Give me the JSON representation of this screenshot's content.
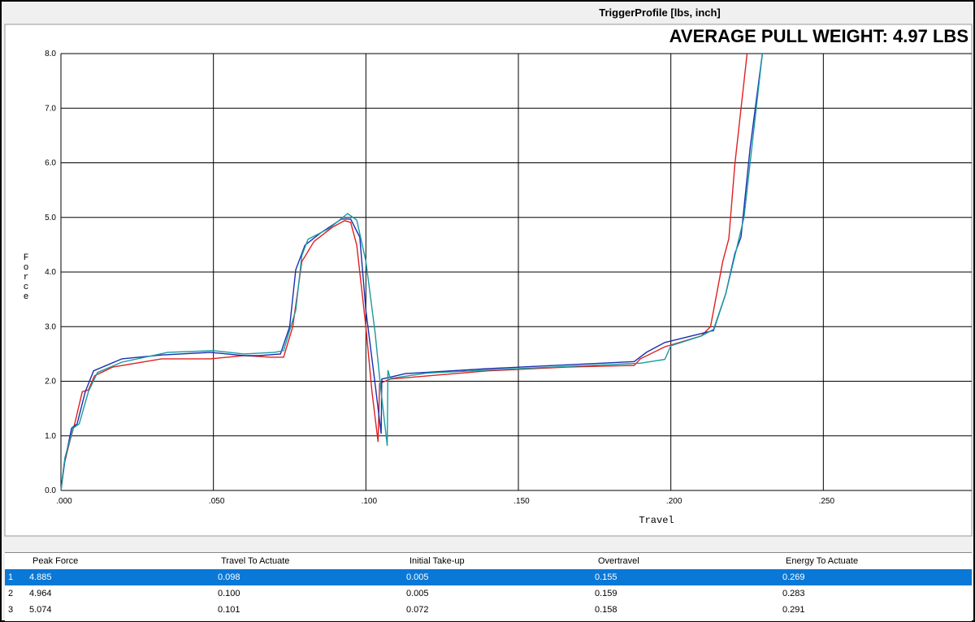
{
  "window_title": "TriggerProfile [lbs, inch]",
  "banner": "AVERAGE PULL WEIGHT: 4.97 LBS",
  "chart_data": {
    "type": "line",
    "xlabel": "Travel",
    "ylabel": "Force",
    "grid": true,
    "xlim": [
      0,
      0.3
    ],
    "ylim": [
      0,
      8
    ],
    "xticks": [
      {
        "value": 0,
        "label": ".000"
      },
      {
        "value": 0.05,
        "label": ".050"
      },
      {
        "value": 0.1,
        "label": ".100"
      },
      {
        "value": 0.15,
        "label": ".150"
      },
      {
        "value": 0.2,
        "label": ".200"
      },
      {
        "value": 0.25,
        "label": ".250"
      }
    ],
    "yticks": [
      {
        "value": 0,
        "label": "0.0"
      },
      {
        "value": 1,
        "label": "1.0"
      },
      {
        "value": 2,
        "label": "2.0"
      },
      {
        "value": 3,
        "label": "3.0"
      },
      {
        "value": 4,
        "label": "4.0"
      },
      {
        "value": 5,
        "label": "5.0"
      },
      {
        "value": 6,
        "label": "6.0"
      },
      {
        "value": 7,
        "label": "7.0"
      },
      {
        "value": 8,
        "label": "8.0"
      }
    ],
    "series": [
      {
        "color": "#e02020",
        "x": [
          0,
          0.001,
          0.003,
          0.0045,
          0.007,
          0.009,
          0.011,
          0.017,
          0.033,
          0.049,
          0.06,
          0.069,
          0.073,
          0.076,
          0.079,
          0.083,
          0.089,
          0.093,
          0.095,
          0.097,
          0.1,
          0.102,
          0.104,
          0.1045,
          0.108,
          0.14,
          0.166,
          0.188,
          0.19,
          0.198,
          0.21,
          0.213,
          0.217,
          0.219,
          0.221,
          0.225
        ],
        "values": [
          0,
          0.48,
          0.92,
          1.22,
          1.81,
          1.84,
          2.1,
          2.26,
          2.41,
          2.41,
          2.47,
          2.44,
          2.44,
          3.0,
          4.19,
          4.56,
          4.82,
          4.94,
          4.91,
          4.49,
          3.0,
          1.81,
          0.89,
          1.96,
          2.04,
          2.19,
          2.26,
          2.29,
          2.41,
          2.63,
          2.83,
          3.0,
          4.19,
          4.61,
          5.98,
          8.0
        ]
      },
      {
        "color": "#1a2fb0",
        "x": [
          0,
          0.0013,
          0.0035,
          0.0053,
          0.008,
          0.0107,
          0.02,
          0.033,
          0.049,
          0.06,
          0.065,
          0.072,
          0.075,
          0.077,
          0.08,
          0.085,
          0.092,
          0.095,
          0.098,
          0.1,
          0.103,
          0.105,
          0.1052,
          0.113,
          0.14,
          0.188,
          0.192,
          0.198,
          0.209,
          0.214,
          0.218,
          0.221,
          0.223,
          0.226,
          0.23
        ],
        "values": [
          0,
          0.55,
          1.14,
          1.22,
          1.81,
          2.19,
          2.41,
          2.48,
          2.53,
          2.47,
          2.47,
          2.5,
          3.0,
          4.04,
          4.49,
          4.71,
          4.97,
          4.97,
          4.64,
          3.3,
          1.96,
          1.04,
          2.04,
          2.14,
          2.23,
          2.36,
          2.53,
          2.71,
          2.86,
          2.93,
          3.6,
          4.34,
          4.64,
          6.28,
          8.0
        ]
      },
      {
        "color": "#1a9aa0",
        "x": [
          0,
          0.0013,
          0.004,
          0.006,
          0.009,
          0.012,
          0.02,
          0.035,
          0.05,
          0.06,
          0.07,
          0.073,
          0.077,
          0.079,
          0.081,
          0.088,
          0.094,
          0.097,
          0.1,
          0.103,
          0.105,
          0.107,
          0.1072,
          0.108,
          0.12,
          0.15,
          0.19,
          0.198,
          0.2,
          0.21,
          0.214,
          0.218,
          0.221,
          0.224,
          0.227,
          0.23
        ],
        "values": [
          0,
          0.6,
          1.14,
          1.22,
          1.81,
          2.16,
          2.35,
          2.53,
          2.56,
          2.5,
          2.53,
          2.56,
          3.3,
          4.3,
          4.6,
          4.8,
          5.07,
          4.95,
          4.2,
          2.9,
          1.8,
          0.82,
          2.2,
          2.05,
          2.15,
          2.23,
          2.33,
          2.4,
          2.65,
          2.83,
          2.95,
          3.6,
          4.3,
          5.0,
          6.5,
          8.0
        ]
      }
    ]
  },
  "table": {
    "headers": [
      "Peak Force",
      "Travel To Actuate",
      "Initial Take-up",
      "Overtravel",
      "Energy To Actuate"
    ],
    "rows": [
      [
        "1",
        "4.885",
        "0.098",
        "0.005",
        "0.155",
        "0.269"
      ],
      [
        "2",
        "4.964",
        "0.100",
        "0.005",
        "0.159",
        "0.283"
      ],
      [
        "3",
        "5.074",
        "0.101",
        "0.072",
        "0.158",
        "0.291"
      ]
    ]
  }
}
